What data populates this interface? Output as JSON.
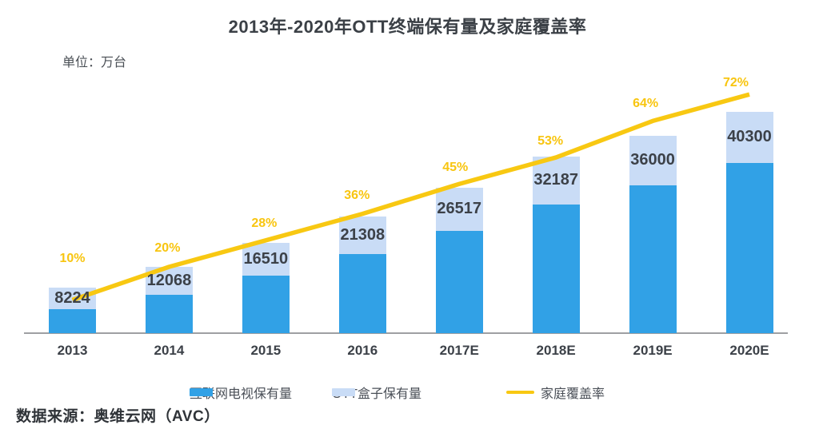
{
  "title": "2013年-2020年OTT终端保有量及家庭覆盖率",
  "unit_label": "单位：万台",
  "source": "数据来源：奥维云网（AVC）",
  "colors": {
    "bar_internet_tv": "#31a1e6",
    "bar_ott_box": "#c9dcf6",
    "coverage_line": "#f8c812",
    "percent_label": "#f8c510",
    "value_label": "#3c4148",
    "axis_line": "#9ea0a3",
    "title_text": "#3b4046",
    "legend_text": "#4a4f57",
    "background": "#ffffff"
  },
  "chart_data": {
    "type": "combo",
    "title": "2013年-2020年OTT终端保有量及家庭覆盖率",
    "unit": "万台",
    "categories": [
      "2013",
      "2014",
      "2015",
      "2016",
      "2017E",
      "2018E",
      "2019E",
      "2020E"
    ],
    "bar_totals": [
      8224,
      12068,
      16510,
      21308,
      26517,
      32187,
      36000,
      40300
    ],
    "bar_total_labels": [
      "8224",
      "12068",
      "16510",
      "21308",
      "26517",
      "32187",
      "36000",
      "40300"
    ],
    "series": [
      {
        "name": "互联网电视保有量",
        "chart_type": "bar",
        "stack": true,
        "color": "#31a1e6",
        "values_estimated_from_pixels": true,
        "values": [
          4400,
          7050,
          10450,
          14400,
          18600,
          23450,
          26900,
          31000
        ]
      },
      {
        "name": "OTT盒子保有量",
        "chart_type": "bar",
        "stack": true,
        "color": "#c9dcf6",
        "values_estimated_from_pixels": true,
        "values": [
          3824,
          5018,
          6060,
          6908,
          7917,
          8737,
          9100,
          9300
        ]
      },
      {
        "name": "家庭覆盖率",
        "chart_type": "line",
        "color": "#f8c812",
        "unit": "%",
        "values": [
          10,
          20,
          28,
          36,
          45,
          53,
          64,
          72
        ],
        "labels": [
          "10%",
          "20%",
          "28%",
          "36%",
          "45%",
          "53%",
          "64%",
          "72%"
        ]
      }
    ],
    "legend_position": "bottom",
    "grid": false,
    "y_axis_visible": false,
    "x_axis_visible": true,
    "bar_value_labels_position": "inside-top-segment",
    "ylim_bars": [
      0,
      40300
    ],
    "ylim_line_percent": [
      0,
      100
    ]
  }
}
